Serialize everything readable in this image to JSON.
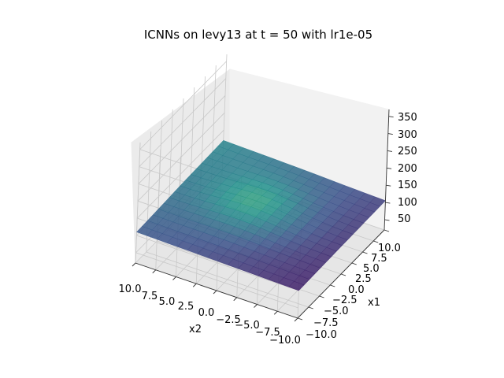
{
  "chart_data": {
    "type": "surface3d",
    "title": "ICNNs on levy13 at t = 50 with lr1e-05",
    "xlabel": "x1",
    "ylabel": "x2",
    "zlabel": "",
    "xlim": [
      -10,
      10
    ],
    "ylim": [
      -10,
      10
    ],
    "zlim": [
      20,
      370
    ],
    "x_ticks": [
      "−10.0",
      "−7.5",
      "−5.0",
      "−2.5",
      "0.0",
      "2.5",
      "5.0",
      "7.5",
      "10.0"
    ],
    "y_ticks": [
      "10.0",
      "7.5",
      "5.0",
      "2.5",
      "0.0",
      "−2.5",
      "−5.0",
      "−7.5",
      "−10.0"
    ],
    "z_ticks": [
      "50",
      "100",
      "150",
      "200",
      "250",
      "300",
      "350"
    ],
    "grid": true,
    "colormap": "viridis",
    "surface": {
      "description": "nearly flat learned surface",
      "z_range_approx": [
        95,
        150
      ],
      "corner_values": {
        "x1_min_x2_min": 100,
        "x1_min_x2_max": 110,
        "x1_max_x2_min": 105,
        "x1_max_x2_max": 120
      },
      "center_value": 125
    }
  }
}
